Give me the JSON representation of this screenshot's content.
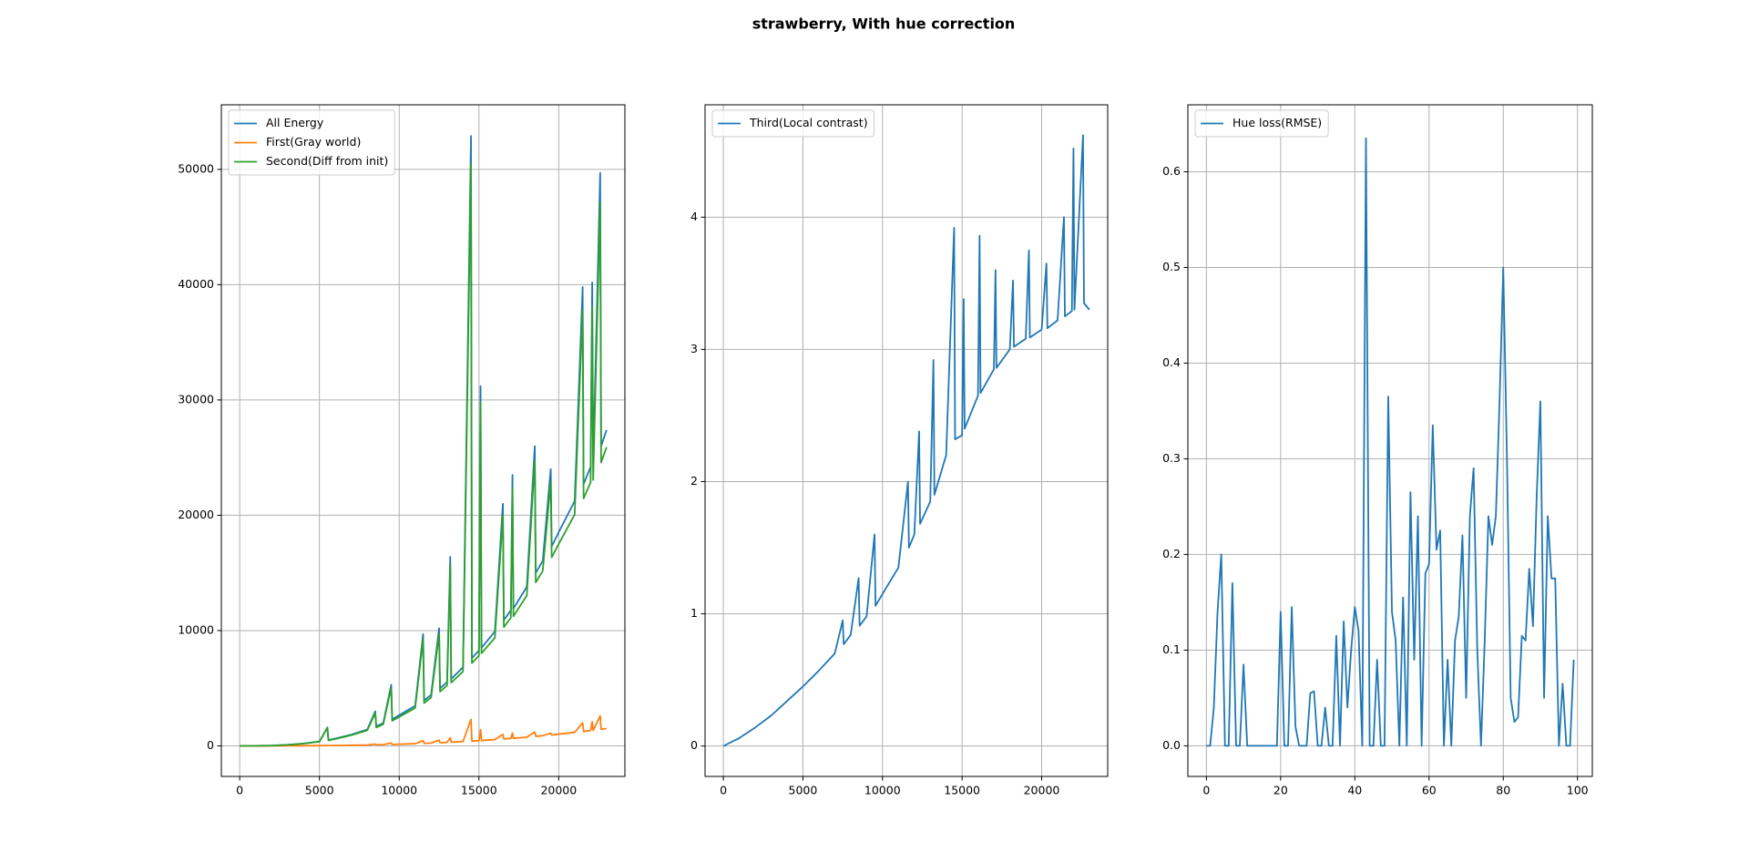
{
  "title": "strawberry, With hue correction",
  "chart_data": [
    {
      "type": "line",
      "grid": true,
      "legend": "upper left",
      "x": [
        0,
        1000,
        2000,
        3000,
        4000,
        5000,
        5500,
        5560,
        6000,
        7000,
        8000,
        8500,
        8560,
        9000,
        9500,
        9560,
        10000,
        11000,
        11500,
        11560,
        12000,
        12500,
        12560,
        13000,
        13200,
        13260,
        14000,
        14500,
        14560,
        15000,
        15100,
        15160,
        16000,
        16500,
        16560,
        17000,
        17100,
        17160,
        18000,
        18500,
        18560,
        19000,
        19500,
        19560,
        20000,
        21000,
        21500,
        21560,
        22000,
        22100,
        22160,
        22600,
        22660,
        23000
      ],
      "series": [
        {
          "name": "All Energy",
          "color": "#1f77b4",
          "values": [
            0,
            4,
            29,
            92,
            204,
            382,
            1600,
            500,
            636,
            979,
            1425,
            3000,
            1690,
            1980,
            5300,
            2300,
            2660,
            3475,
            9700,
            3930,
            4430,
            10200,
            4980,
            5540,
            16400,
            5800,
            6820,
            52900,
            7600,
            8280,
            31200,
            8500,
            9920,
            21000,
            10900,
            11760,
            23500,
            11900,
            13800,
            26000,
            15000,
            16050,
            24000,
            17300,
            18530,
            21230,
            39800,
            22700,
            24190,
            40200,
            24400,
            49700,
            26000,
            27400
          ]
        },
        {
          "name": "First(Gray world)",
          "color": "#ff7f0e",
          "values": [
            0,
            0,
            2,
            5,
            11,
            21,
            40,
            27,
            35,
            54,
            78,
            150,
            93,
            109,
            250,
            126,
            146,
            191,
            450,
            216,
            244,
            500,
            274,
            305,
            700,
            319,
            375,
            2300,
            418,
            455,
            1400,
            467,
            546,
            1000,
            600,
            647,
            1100,
            655,
            759,
            1200,
            825,
            883,
            1100,
            950,
            1019,
            1168,
            2000,
            1250,
            1330,
            2100,
            1342,
            2600,
            1430,
            1507
          ]
        },
        {
          "name": "Second(Diff from init)",
          "color": "#2ca02c",
          "values": [
            0,
            4,
            27,
            87,
            193,
            361,
            1560,
            473,
            601,
            925,
            1347,
            2850,
            1597,
            1871,
            5050,
            2174,
            2514,
            3284,
            9250,
            3714,
            4186,
            9700,
            4706,
            5235,
            15700,
            5481,
            6445,
            50500,
            7182,
            7825,
            29800,
            8033,
            9374,
            20000,
            10300,
            11113,
            22400,
            11245,
            13041,
            24800,
            14175,
            15167,
            22900,
            16350,
            17511,
            20062,
            37800,
            21450,
            22860,
            38100,
            23058,
            47100,
            24570,
            25893
          ]
        }
      ],
      "xlim": [
        -1150,
        24150
      ],
      "xticks": [
        0,
        5000,
        10000,
        15000,
        20000
      ],
      "ylim": [
        -2650,
        55600
      ],
      "yticks": [
        0,
        10000,
        20000,
        30000,
        40000,
        50000
      ]
    },
    {
      "type": "line",
      "grid": true,
      "legend": "upper left",
      "x": [
        0,
        1000,
        2000,
        3000,
        4000,
        5000,
        6000,
        7000,
        7500,
        7560,
        8000,
        8500,
        8560,
        9000,
        9500,
        9560,
        10000,
        11000,
        11600,
        11660,
        12000,
        12300,
        12360,
        13000,
        13200,
        13260,
        14000,
        14500,
        14560,
        15000,
        15100,
        15160,
        16000,
        16100,
        16160,
        17000,
        17100,
        17160,
        18000,
        18200,
        18260,
        19000,
        19200,
        19260,
        20000,
        20300,
        20360,
        21000,
        21400,
        21460,
        21900,
        22000,
        22060,
        22600,
        22660,
        23000
      ],
      "series": [
        {
          "name": "Third(Local contrast)",
          "color": "#1f77b4",
          "values": [
            0,
            0.06,
            0.14,
            0.23,
            0.34,
            0.45,
            0.57,
            0.7,
            0.95,
            0.77,
            0.84,
            1.27,
            0.91,
            0.98,
            1.6,
            1.06,
            1.15,
            1.35,
            2.0,
            1.5,
            1.6,
            2.38,
            1.68,
            1.85,
            2.92,
            1.9,
            2.2,
            3.92,
            2.32,
            2.35,
            3.38,
            2.4,
            2.65,
            3.86,
            2.67,
            2.85,
            3.6,
            2.86,
            3.0,
            3.52,
            3.02,
            3.08,
            3.75,
            3.09,
            3.15,
            3.65,
            3.16,
            3.22,
            4.0,
            3.25,
            3.29,
            4.52,
            3.3,
            4.62,
            3.35,
            3.3
          ]
        }
      ],
      "xlim": [
        -1150,
        24150
      ],
      "xticks": [
        0,
        5000,
        10000,
        15000,
        20000
      ],
      "ylim": [
        -0.23,
        4.85
      ],
      "yticks": [
        0,
        1,
        2,
        3,
        4
      ]
    },
    {
      "type": "line",
      "grid": true,
      "legend": "upper left",
      "x": [
        0,
        1,
        2,
        3,
        4,
        5,
        6,
        7,
        8,
        9,
        10,
        11,
        12,
        13,
        14,
        15,
        16,
        17,
        18,
        19,
        20,
        21,
        22,
        23,
        24,
        25,
        26,
        27,
        28,
        29,
        30,
        31,
        32,
        33,
        34,
        35,
        36,
        37,
        38,
        39,
        40,
        41,
        42,
        43,
        44,
        45,
        46,
        47,
        48,
        49,
        50,
        51,
        52,
        53,
        54,
        55,
        56,
        57,
        58,
        59,
        60,
        61,
        62,
        63,
        64,
        65,
        66,
        67,
        68,
        69,
        70,
        71,
        72,
        73,
        74,
        75,
        76,
        77,
        78,
        79,
        80,
        81,
        82,
        83,
        84,
        85,
        86,
        87,
        88,
        89,
        90,
        91,
        92,
        93,
        94,
        95,
        96,
        97,
        98,
        99
      ],
      "series": [
        {
          "name": "Hue loss(RMSE)",
          "color": "#1f77b4",
          "values": [
            0,
            0,
            0.04,
            0.14,
            0.2,
            0,
            0,
            0.17,
            0,
            0,
            0.085,
            0,
            0,
            0,
            0,
            0,
            0,
            0,
            0,
            0,
            0.14,
            0,
            0,
            0.145,
            0.02,
            0,
            0,
            0,
            0.055,
            0.057,
            0,
            0,
            0.04,
            0,
            0,
            0.115,
            0,
            0.13,
            0.04,
            0.1,
            0.145,
            0.12,
            0,
            0.635,
            0,
            0,
            0.09,
            0,
            0,
            0.365,
            0.14,
            0.11,
            0,
            0.155,
            0,
            0.265,
            0.09,
            0.24,
            0,
            0.18,
            0.19,
            0.335,
            0.205,
            0.225,
            0,
            0.09,
            0,
            0.11,
            0.135,
            0.22,
            0.05,
            0.24,
            0.29,
            0.1,
            0,
            0.11,
            0.24,
            0.21,
            0.24,
            0.36,
            0.5,
            0.3,
            0.05,
            0.025,
            0.03,
            0.115,
            0.11,
            0.185,
            0.125,
            0.26,
            0.36,
            0.05,
            0.24,
            0.175,
            0.175,
            0,
            0.065,
            0,
            0,
            0.09
          ]
        }
      ],
      "xlim": [
        -5,
        104
      ],
      "xticks": [
        0,
        20,
        40,
        60,
        80,
        100
      ],
      "ylim": [
        -0.032,
        0.67
      ],
      "yticks": [
        {
          "value": 0,
          "label": "0.0"
        },
        {
          "value": 0.1,
          "label": "0.1"
        },
        {
          "value": 0.2,
          "label": "0.2"
        },
        {
          "value": 0.3,
          "label": "0.3"
        },
        {
          "value": 0.4,
          "label": "0.4"
        },
        {
          "value": 0.5,
          "label": "0.5"
        },
        {
          "value": 0.6,
          "label": "0.6"
        }
      ]
    }
  ]
}
